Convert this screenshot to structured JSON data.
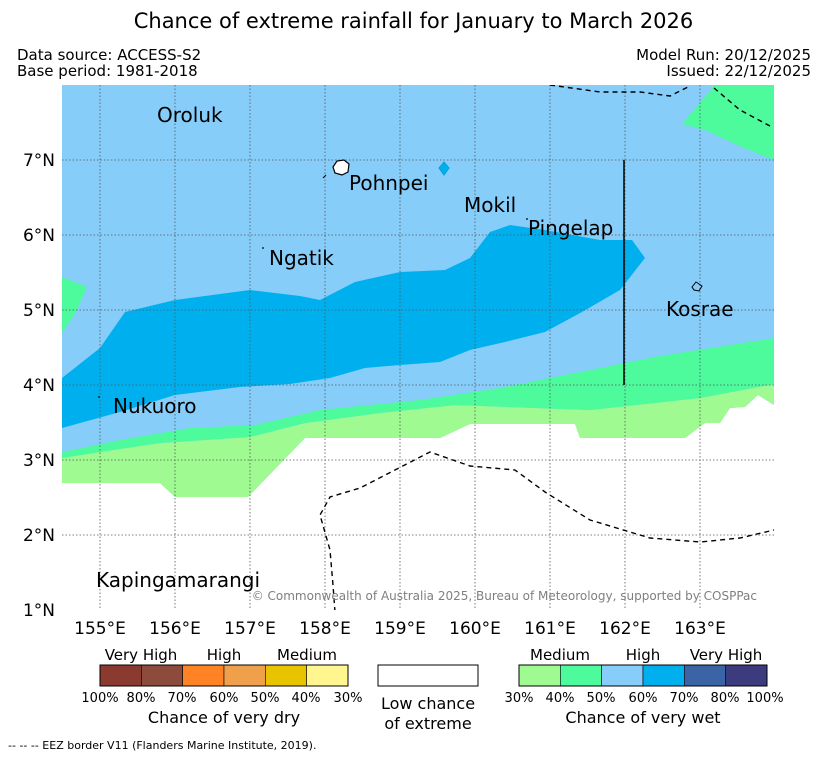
{
  "title": "Chance of extreme rainfall for January to March 2026",
  "header": {
    "data_source": "Data source: ACCESS-S2",
    "base_period": "Base period: 1981-2018",
    "model_run": "Model Run: 20/12/2025",
    "issued": "Issued: 22/12/2025"
  },
  "places": {
    "oroluk": "Oroluk",
    "pohnpei": "Pohnpei",
    "mokil": "Mokil",
    "pingelap": "Pingelap",
    "ngatik": "Ngatik",
    "kosrae": "Kosrae",
    "nukuoro": "Nukuoro",
    "kapingamarangi": "Kapingamarangi"
  },
  "lat_labels": [
    "7°N",
    "6°N",
    "5°N",
    "4°N",
    "3°N",
    "2°N",
    "1°N"
  ],
  "lon_labels": [
    "155°E",
    "156°E",
    "157°E",
    "158°E",
    "159°E",
    "160°E",
    "161°E",
    "162°E",
    "163°E"
  ],
  "copyright": "© Commonwealth of Australia 2025, Bureau of Meteorology, supported by COSPPac",
  "legend": {
    "dry": {
      "groups": [
        "Very High",
        "High",
        "Medium"
      ],
      "ticks": [
        "100%",
        "80%",
        "70%",
        "60%",
        "50%",
        "40%",
        "30%"
      ],
      "colors": [
        "#8b3a2f",
        "#8c4b3b",
        "#ff8224",
        "#f0a04b",
        "#e8c400",
        "#fff68f"
      ],
      "title": "Chance of very dry"
    },
    "low": {
      "title_line1": "Low chance",
      "title_line2": "of extreme"
    },
    "wet": {
      "groups": [
        "Medium",
        "High",
        "Very High"
      ],
      "ticks": [
        "30%",
        "40%",
        "50%",
        "60%",
        "70%",
        "80%",
        "100%"
      ],
      "colors": [
        "#9efa91",
        "#4dfa9c",
        "#87cdfa",
        "#00b0ee",
        "#3a64a6",
        "#3b3b7d"
      ],
      "title": "Chance of very wet"
    }
  },
  "footnote": "--  --  -- EEZ border V11 (Flanders Marine Institute, 2019)."
}
